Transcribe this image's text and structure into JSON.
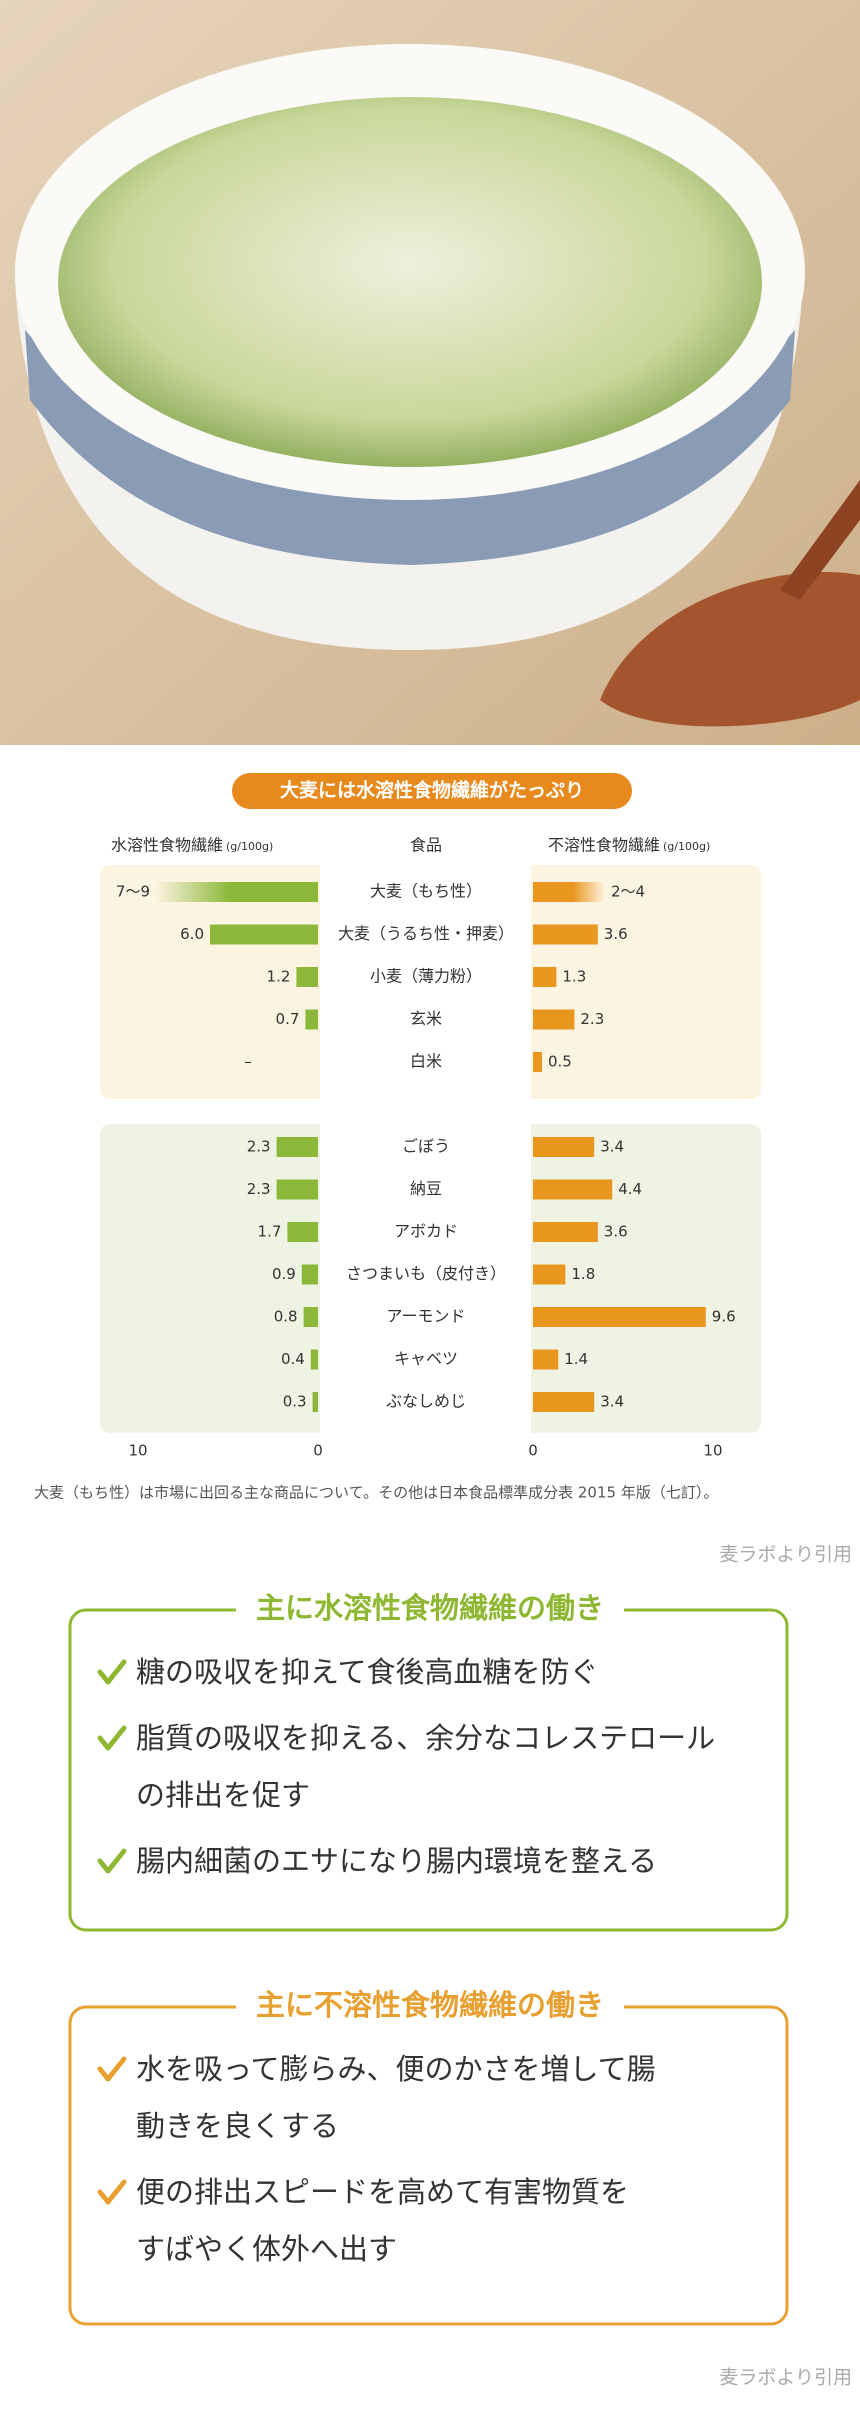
{
  "chart_data": {
    "type": "butterfly-bar",
    "title": "大麦には水溶性食物繊維がたっぷり",
    "category_label": "食品",
    "unit": "(g/100g)",
    "categories": [
      "大麦（もち性）",
      "大麦（うるち性・押麦）",
      "小麦（薄力粉）",
      "玄米",
      "白米",
      "ごぼう",
      "納豆",
      "アボカド",
      "さつまいも（皮付き）",
      "アーモンド",
      "キャベツ",
      "ぶなしめじ"
    ],
    "series": [
      {
        "name": "水溶性食物繊維",
        "color": "#8cb83a",
        "values": [
          9,
          6.0,
          1.2,
          0.7,
          null,
          2.3,
          2.3,
          1.7,
          0.9,
          0.8,
          0.4,
          0.3
        ],
        "value_labels": [
          "7〜9",
          "6.0",
          "1.2",
          "0.7",
          "–",
          "2.3",
          "2.3",
          "1.7",
          "0.9",
          "0.8",
          "0.4",
          "0.3"
        ]
      },
      {
        "name": "不溶性食物繊維",
        "color": "#e8961e",
        "values": [
          4,
          3.6,
          1.3,
          2.3,
          0.5,
          3.4,
          4.4,
          3.6,
          1.8,
          9.6,
          1.4,
          3.4
        ],
        "value_labels": [
          "2〜4",
          "3.6",
          "1.3",
          "2.3",
          "0.5",
          "3.4",
          "4.4",
          "3.6",
          "1.8",
          "9.6",
          "1.4",
          "3.4"
        ]
      }
    ],
    "xlim": [
      0,
      10
    ],
    "xticks": [
      0,
      10
    ]
  },
  "note": "大麦（もち性）は市場に出回る主な商品について。その他は日本食品標準成分表 2015 年版（七訂）。",
  "source": "麦ラボより引用",
  "boxes": [
    {
      "title": "主に水溶性食物繊維の働き",
      "color": "#8fb832",
      "items": [
        [
          "糖の吸収を抑えて食後高血糖を防ぐ"
        ],
        [
          "脂質の吸収を抑える、余分なコレステロール",
          "の排出を促す"
        ],
        [
          "腸内細菌のエサになり腸内環境を整える"
        ]
      ]
    },
    {
      "title": "主に不溶性食物繊維の働き",
      "color": "#e8a030",
      "items": [
        [
          "水を吸って膨らみ、便のかさを増して腸",
          "動きを良くする"
        ],
        [
          "便の排出スピードを高めて有害物質を",
          "すばやく体外へ出す"
        ]
      ]
    }
  ]
}
